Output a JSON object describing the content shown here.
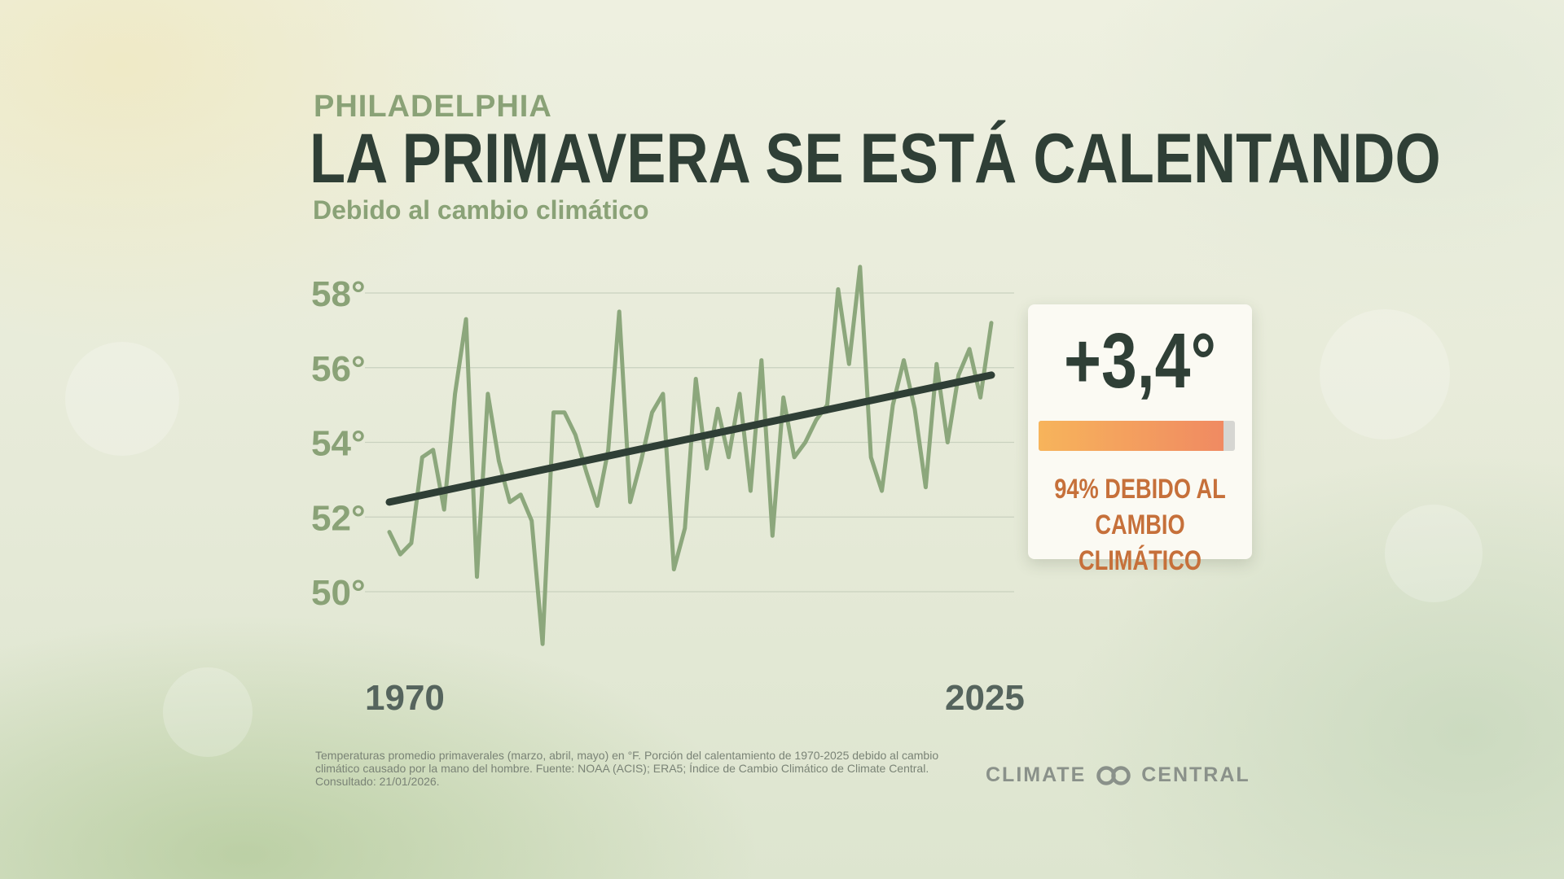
{
  "header": {
    "kicker": "PHILADELPHIA",
    "title": "LA PRIMAVERA SE ESTÁ CALENTANDO",
    "subtitle": "Debido al cambio climático"
  },
  "chart_data": {
    "type": "line",
    "x": [
      1970,
      1971,
      1972,
      1973,
      1974,
      1975,
      1976,
      1977,
      1978,
      1979,
      1980,
      1981,
      1982,
      1983,
      1984,
      1985,
      1986,
      1987,
      1988,
      1989,
      1990,
      1991,
      1992,
      1993,
      1994,
      1995,
      1996,
      1997,
      1998,
      1999,
      2000,
      2001,
      2002,
      2003,
      2004,
      2005,
      2006,
      2007,
      2008,
      2009,
      2010,
      2011,
      2012,
      2013,
      2014,
      2015,
      2016,
      2017,
      2018,
      2019,
      2020,
      2021,
      2022,
      2023,
      2024,
      2025
    ],
    "series": [
      {
        "type": "line",
        "color": "#8ca77c",
        "values": [
          51.6,
          51.0,
          51.3,
          53.6,
          53.8,
          52.2,
          55.3,
          57.3,
          50.4,
          55.3,
          53.5,
          52.4,
          52.6,
          51.9,
          48.6,
          54.8,
          54.8,
          54.2,
          53.2,
          52.3,
          53.8,
          57.5,
          52.4,
          53.5,
          54.8,
          55.3,
          50.6,
          51.7,
          55.7,
          53.3,
          54.9,
          53.6,
          55.3,
          52.7,
          56.2,
          51.5,
          55.2,
          53.6,
          54.0,
          54.6,
          55.0,
          58.1,
          56.1,
          58.7,
          53.6,
          52.7,
          55.0,
          56.2,
          54.9,
          52.8,
          56.1,
          54.0,
          55.8,
          56.5,
          55.2,
          57.2
        ]
      },
      {
        "type": "line",
        "color": "#2f3f36",
        "values": [
          52.4,
          55.8
        ],
        "x": [
          1970,
          2025
        ]
      }
    ],
    "yticks": [
      50,
      52,
      54,
      56,
      58
    ],
    "ytick_labels": [
      "50°",
      "52°",
      "54°",
      "56°",
      "58°"
    ],
    "xtick_labels": [
      "1970",
      "2025"
    ],
    "ylim": [
      47.5,
      59.5
    ],
    "xlim": [
      1970,
      2025
    ],
    "grid": true
  },
  "callout": {
    "value": "+3,4°",
    "share_percent": 94,
    "text_line1": "94% DEBIDO AL",
    "text_line2": "CAMBIO CLIMÁTICO",
    "bar_color_start": "#f7b45b",
    "bar_color_end": "#f08a62"
  },
  "footer": {
    "source": "Temperaturas promedio primaverales (marzo, abril, mayo) en °F. Porción del calentamiento de 1970-2025 debido al cambio climático causado por la mano del hombre. Fuente: NOAA (ACIS); ERA5; Índice de Cambio Climático de Climate Central. Consultado: 21/01/2026.",
    "logo_left": "CLIMATE",
    "logo_right": "CENTRAL"
  }
}
